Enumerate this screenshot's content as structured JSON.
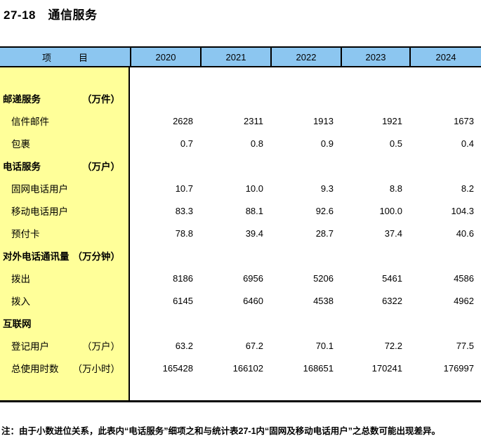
{
  "title": "27-18　通信服务",
  "table": {
    "header": {
      "item_label": "项　　　目",
      "years": [
        "2020",
        "2021",
        "2022",
        "2023",
        "2024"
      ]
    },
    "rows": [
      {
        "label": "邮递服务",
        "unit": "（万件）",
        "type": "category",
        "values": [
          "",
          "",
          "",
          "",
          ""
        ]
      },
      {
        "label": "信件邮件",
        "unit": "",
        "type": "item",
        "values": [
          "2628",
          "2311",
          "1913",
          "1921",
          "1673"
        ]
      },
      {
        "label": "包裹",
        "unit": "",
        "type": "item",
        "values": [
          "0.7",
          "0.8",
          "0.9",
          "0.5",
          "0.4"
        ]
      },
      {
        "label": "电话服务",
        "unit": "（万户）",
        "type": "category",
        "values": [
          "",
          "",
          "",
          "",
          ""
        ]
      },
      {
        "label": "固网电话用户",
        "unit": "",
        "type": "item",
        "values": [
          "10.7",
          "10.0",
          "9.3",
          "8.8",
          "8.2"
        ]
      },
      {
        "label": "移动电话用户",
        "unit": "",
        "type": "item",
        "values": [
          "83.3",
          "88.1",
          "92.6",
          "100.0",
          "104.3"
        ]
      },
      {
        "label": "预付卡",
        "unit": "",
        "type": "item",
        "values": [
          "78.8",
          "39.4",
          "28.7",
          "37.4",
          "40.6"
        ]
      },
      {
        "label": "对外电话通讯量",
        "unit": "（万分钟）",
        "type": "category",
        "values": [
          "",
          "",
          "",
          "",
          ""
        ]
      },
      {
        "label": "拨出",
        "unit": "",
        "type": "item",
        "values": [
          "8186",
          "6956",
          "5206",
          "5461",
          "4586"
        ]
      },
      {
        "label": "拨入",
        "unit": "",
        "type": "item",
        "values": [
          "6145",
          "6460",
          "4538",
          "6322",
          "4962"
        ]
      },
      {
        "label": "互联网",
        "unit": "",
        "type": "category",
        "values": [
          "",
          "",
          "",
          "",
          ""
        ]
      },
      {
        "label": "登记用户",
        "unit": "（万户）",
        "type": "item",
        "values": [
          "63.2",
          "67.2",
          "70.1",
          "72.2",
          "77.5"
        ]
      },
      {
        "label": "总使用时数",
        "unit": "（万小时）",
        "type": "item",
        "values": [
          "165428",
          "166102",
          "168651",
          "170241",
          "176997"
        ]
      }
    ]
  },
  "footnote": "注：由于小数进位关系，此表内“电话服务”细项之和与统计表27-1内“固网及移动电话用户”之总数可能出现差异。",
  "colors": {
    "header_bg": "#8CC6F0",
    "label_column_bg": "#FFFF99",
    "border": "#000000",
    "text": "#000000"
  }
}
